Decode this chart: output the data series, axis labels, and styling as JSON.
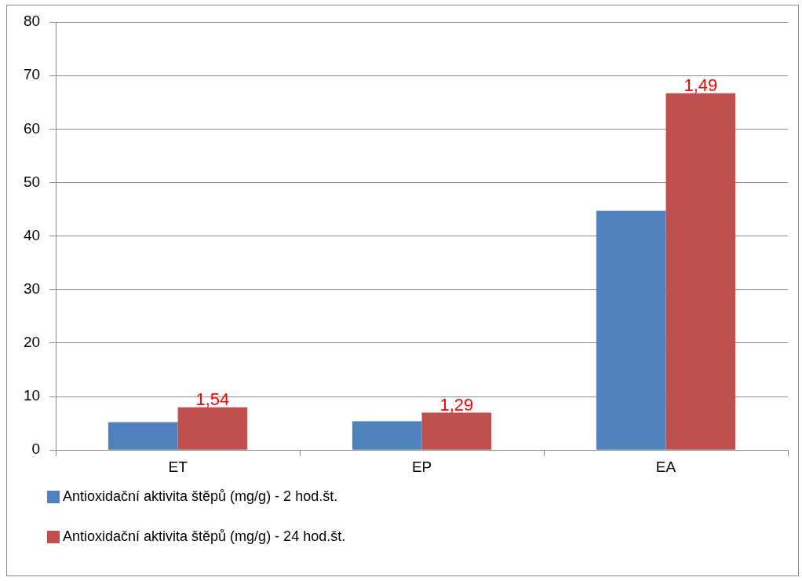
{
  "chart_data": {
    "type": "bar",
    "categories": [
      "ET",
      "EP",
      "EA"
    ],
    "series": [
      {
        "name": "Antioxidační aktivita štěpů (mg/g) - 2 hod.št.",
        "color": "#4f81bd",
        "values": [
          5.2,
          5.4,
          44.7
        ]
      },
      {
        "name": "Antioxidační aktivita štěpů (mg/g) - 24 hod.št.",
        "color": "#c0504d",
        "values": [
          8.0,
          7.0,
          66.7
        ]
      }
    ],
    "ylim": [
      0,
      80
    ],
    "yticks": [
      0,
      10,
      20,
      30,
      40,
      50,
      60,
      70,
      80
    ],
    "grid": "y",
    "legend": "bottom",
    "annotations": [
      {
        "text": "1,54",
        "x": "ET",
        "y": 8.0
      },
      {
        "text": "1,29",
        "x": "EP",
        "y": 7.0
      },
      {
        "text": "1,49",
        "x": "EA",
        "y": 66.7
      }
    ]
  }
}
